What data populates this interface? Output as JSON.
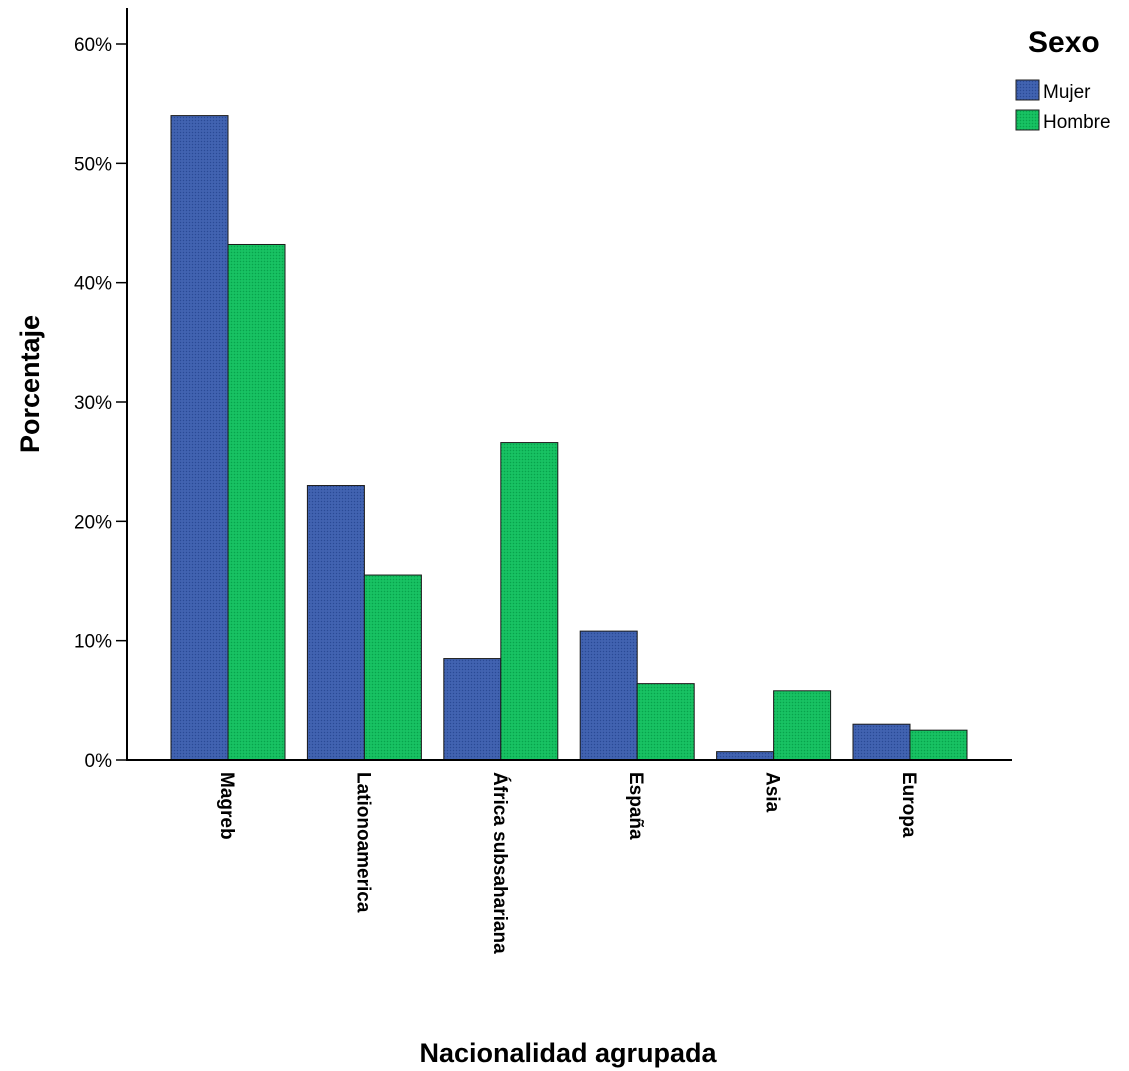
{
  "chart_data": {
    "type": "bar",
    "categories": [
      "Magreb",
      "Lationoamerica",
      "África subsahariana",
      "España",
      "Asia",
      "Europa"
    ],
    "series": [
      {
        "name": "Mujer",
        "color": "#3c5ca8",
        "values": [
          54.0,
          23.0,
          8.5,
          10.8,
          0.7,
          3.0
        ]
      },
      {
        "name": "Hombre",
        "color": "#12b85b",
        "values": [
          43.2,
          15.5,
          26.6,
          6.4,
          5.8,
          2.5
        ]
      }
    ],
    "xlabel": "Nacionalidad agrupada",
    "ylabel": "Porcentaje",
    "ylim": [
      0,
      60
    ],
    "yticks": [
      "0%",
      "10%",
      "20%",
      "30%",
      "40%",
      "50%",
      "60%"
    ],
    "legend": {
      "title": "Sexo",
      "position": "top-right"
    },
    "grid": false
  }
}
